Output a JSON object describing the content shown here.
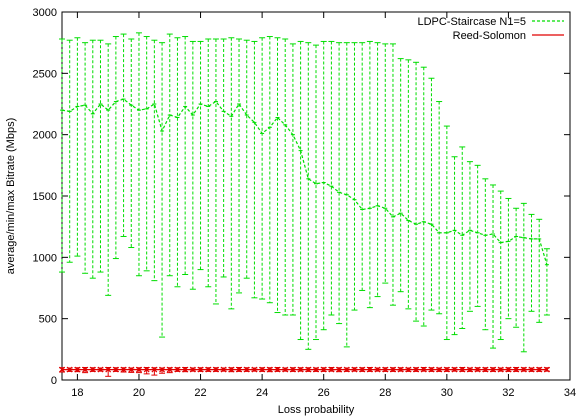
{
  "chart_data": {
    "type": "line",
    "title": "",
    "xlabel": "Loss probability",
    "ylabel": "average/min/max Bitrate (Mbps)",
    "xlim": [
      17.5,
      34
    ],
    "ylim": [
      0,
      3000
    ],
    "xticks": [
      18,
      20,
      22,
      24,
      26,
      28,
      30,
      32,
      34
    ],
    "yticks": [
      0,
      500,
      1000,
      1500,
      2000,
      2500,
      3000
    ],
    "grid": false,
    "legend_position": "top-right",
    "x": [
      17.5,
      17.75,
      18,
      18.25,
      18.5,
      18.75,
      19,
      19.25,
      19.5,
      19.75,
      20,
      20.25,
      20.5,
      20.75,
      21,
      21.25,
      21.5,
      21.75,
      22,
      22.25,
      22.5,
      22.75,
      23,
      23.25,
      23.5,
      23.75,
      24,
      24.25,
      24.5,
      24.75,
      25,
      25.25,
      25.5,
      25.75,
      26,
      26.25,
      26.5,
      26.75,
      27,
      27.25,
      27.5,
      27.75,
      28,
      28.25,
      28.5,
      28.75,
      29,
      29.25,
      29.5,
      29.75,
      30,
      30.25,
      30.5,
      30.75,
      31,
      31.25,
      31.5,
      31.75,
      32,
      32.25,
      32.5,
      32.75,
      33,
      33.25
    ],
    "series": [
      {
        "name": "LDPC-Staircase N1=5",
        "color": "#00dd00",
        "avg": [
          2200,
          2190,
          2230,
          2240,
          2170,
          2250,
          2200,
          2270,
          2290,
          2240,
          2200,
          2210,
          2250,
          2030,
          2160,
          2140,
          2230,
          2160,
          2250,
          2230,
          2270,
          2190,
          2150,
          2250,
          2160,
          2100,
          2010,
          2060,
          2140,
          2080,
          2000,
          1870,
          1640,
          1600,
          1610,
          1580,
          1530,
          1510,
          1470,
          1390,
          1400,
          1420,
          1400,
          1330,
          1360,
          1300,
          1270,
          1290,
          1270,
          1200,
          1200,
          1220,
          1180,
          1220,
          1200,
          1180,
          1190,
          1120,
          1130,
          1170,
          1160,
          1150,
          1150,
          940
        ],
        "min": [
          880,
          960,
          1010,
          870,
          830,
          880,
          690,
          990,
          1170,
          1080,
          850,
          890,
          810,
          350,
          850,
          760,
          860,
          740,
          900,
          760,
          620,
          840,
          580,
          710,
          830,
          670,
          660,
          630,
          550,
          530,
          530,
          330,
          250,
          330,
          410,
          530,
          460,
          270,
          570,
          730,
          590,
          680,
          790,
          610,
          720,
          580,
          480,
          440,
          570,
          540,
          330,
          370,
          420,
          560,
          600,
          410,
          260,
          330,
          500,
          430,
          230,
          560,
          470,
          530
        ],
        "max": [
          2780,
          2770,
          2790,
          2750,
          2770,
          2770,
          2740,
          2800,
          2820,
          2780,
          2830,
          2800,
          2770,
          2750,
          2820,
          2790,
          2800,
          2760,
          2760,
          2780,
          2780,
          2780,
          2790,
          2780,
          2770,
          2760,
          2790,
          2800,
          2790,
          2780,
          2740,
          2760,
          2750,
          2730,
          2760,
          2760,
          2750,
          2750,
          2750,
          2750,
          2760,
          2750,
          2740,
          2740,
          2620,
          2610,
          2590,
          2550,
          2460,
          2270,
          2070,
          1820,
          1900,
          1780,
          1750,
          1640,
          1590,
          1540,
          1480,
          1400,
          1440,
          1350,
          1310,
          1070
        ]
      },
      {
        "name": "Reed-Solomon",
        "color": "#e00000",
        "avg": [
          85,
          85,
          85,
          85,
          85,
          85,
          85,
          85,
          85,
          85,
          85,
          85,
          85,
          85,
          85,
          85,
          85,
          85,
          85,
          85,
          85,
          85,
          85,
          85,
          85,
          85,
          85,
          85,
          85,
          85,
          85,
          85,
          85,
          85,
          85,
          85,
          85,
          85,
          85,
          85,
          85,
          85,
          85,
          85,
          85,
          85,
          85,
          85,
          85,
          85,
          85,
          85,
          85,
          85,
          85,
          85,
          85,
          85,
          85,
          85,
          85,
          85,
          85,
          85
        ],
        "min": [
          65,
          70,
          68,
          60,
          70,
          72,
          30,
          70,
          65,
          62,
          60,
          50,
          40,
          55,
          60,
          70,
          68,
          72,
          70,
          70,
          70,
          72,
          68,
          70,
          70,
          72,
          70,
          68,
          70,
          72,
          70,
          72,
          70,
          70,
          70,
          72,
          68,
          70,
          72,
          70,
          70,
          72,
          70,
          70,
          72,
          70,
          70,
          72,
          70,
          70,
          70,
          72,
          70,
          70,
          72,
          70,
          70,
          72,
          70,
          70,
          72,
          70,
          70,
          72
        ],
        "max": [
          100,
          98,
          100,
          102,
          100,
          98,
          102,
          100,
          100,
          98,
          100,
          102,
          100,
          98,
          100,
          100,
          102,
          98,
          100,
          100,
          100,
          98,
          100,
          102,
          100,
          98,
          100,
          100,
          102,
          98,
          100,
          100,
          100,
          98,
          100,
          102,
          100,
          98,
          100,
          100,
          102,
          98,
          100,
          100,
          100,
          98,
          100,
          102,
          100,
          98,
          100,
          100,
          102,
          98,
          100,
          100,
          100,
          98,
          100,
          102,
          100,
          98,
          100,
          100
        ]
      }
    ]
  }
}
